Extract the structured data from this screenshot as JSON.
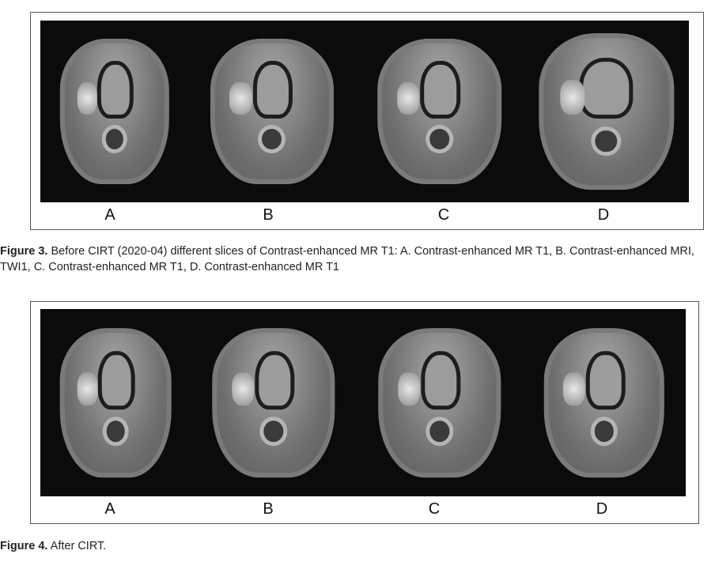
{
  "figure3": {
    "panel_labels": [
      "A",
      "B",
      "C",
      "D"
    ],
    "caption_label": "Figure 3.",
    "caption_text": "Before CIRT (2020-04) different slices of Contrast-enhanced MR T1: A. Contrast-enhanced MR T1, B. Contrast-enhanced MRI, TWI1, C. Contrast-enhanced MR T1, D. Contrast-enhanced MR T1"
  },
  "figure4": {
    "panel_labels": [
      "A",
      "B",
      "C",
      "D"
    ],
    "caption_label": "Figure 4.",
    "caption_text": "After CIRT."
  }
}
